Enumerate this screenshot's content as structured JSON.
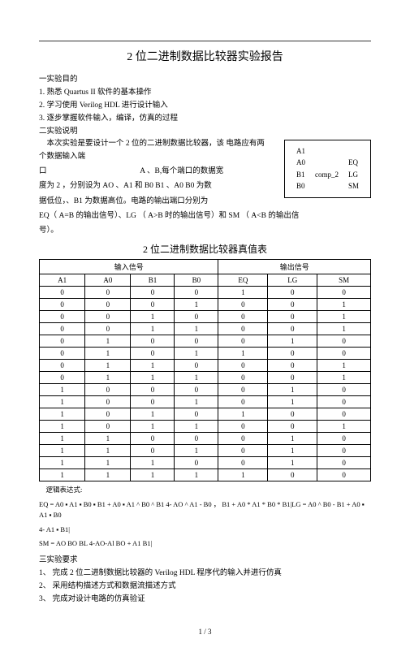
{
  "title": "2 位二进制数据比较器实验报告",
  "sec1": "一实验目的",
  "p1": "1. 熟悉 Quartus II 软件的基本操作",
  "p2": "2. 学习使用 Verilog HDL 进行设计输入",
  "p3": "3. 逐步掌握软件输入，编译，仿真的过程",
  "sec2": "二实验说明",
  "body1": "本次实验是要设计一个 2 位的二进制数据比较器，该  电路应有两个数据输入端",
  "body2": "口",
  "body2b": "A 、B,每个端口的数据宽",
  "body3": "度为 2 ，分别设为  AO 、A1 和 B0 B1 、A0 B0 为数",
  "body4": "据低位，、B1 为数据高位。电路的输出端口分别为",
  "body5": "EQ（ A=B 的输出信号）、LG （ A>B 时的输出信号）和  SM （ A<B 的输出信",
  "body6": "号）。",
  "diagram": {
    "A1": "A1",
    "A0": "A0",
    "B1": "B1",
    "B0": "B0",
    "comp": "comp_2",
    "EQ": "EQ",
    "LG": "LG",
    "SM": "SM"
  },
  "sub_title": "2 位二进制数据比较器真值表",
  "truth": {
    "head_in": "输入信号",
    "head_out": "输出信号",
    "cols": [
      "A1",
      "A0",
      "B1",
      "B0",
      "EQ",
      "LG",
      "SM"
    ],
    "rows": [
      [
        "0",
        "0",
        "0",
        "0",
        "1",
        "0",
        "0"
      ],
      [
        "0",
        "0",
        "0",
        "1",
        "0",
        "0",
        "1"
      ],
      [
        "0",
        "0",
        "1",
        "0",
        "0",
        "0",
        "1"
      ],
      [
        "0",
        "0",
        "1",
        "1",
        "0",
        "0",
        "1"
      ],
      [
        "0",
        "1",
        "0",
        "0",
        "0",
        "1",
        "0"
      ],
      [
        "0",
        "1",
        "0",
        "1",
        "1",
        "0",
        "0"
      ],
      [
        "0",
        "1",
        "1",
        "0",
        "0",
        "0",
        "1"
      ],
      [
        "0",
        "1",
        "1",
        "1",
        "0",
        "0",
        "1"
      ],
      [
        "1",
        "0",
        "0",
        "0",
        "0",
        "1",
        "0"
      ],
      [
        "1",
        "0",
        "0",
        "1",
        "0",
        "1",
        "0"
      ],
      [
        "1",
        "0",
        "1",
        "0",
        "1",
        "0",
        "0"
      ],
      [
        "1",
        "0",
        "1",
        "1",
        "0",
        "0",
        "1"
      ],
      [
        "1",
        "1",
        "0",
        "0",
        "0",
        "1",
        "0"
      ],
      [
        "1",
        "1",
        "0",
        "1",
        "0",
        "1",
        "0"
      ],
      [
        "1",
        "1",
        "1",
        "0",
        "0",
        "1",
        "0"
      ],
      [
        "1",
        "1",
        "1",
        "1",
        "1",
        "0",
        "0"
      ]
    ]
  },
  "logic_label": "逻辑表达式:",
  "eq_formula": "EQ = A0 ▪ A1 ▪ B0 ▪ B1 + A0 ▪ A1 ^ B0 ^ B1 4- AO ^ A1 - B0 ， B1 + A0 * A1 * B0 * B1|LG = A0 ^ B0 - B1 + A0 ▪ A1 ▪ B0",
  "eq_formula2": "4- A1 ▪ B1|",
  "sm_formula": "SM = AO BO BL 4-AO-Al BO + A1 B1|",
  "sec3": "三实验要求",
  "r1": "1、   完成 2 位二进制数据比较器的  Verilog HDL 程序代的输入并进行仿真",
  "r2": "2、   采用结构描述方式和数据流描述方式",
  "r3": "3、   完成对设计电路的仿真验证",
  "footer": "1 / 3"
}
